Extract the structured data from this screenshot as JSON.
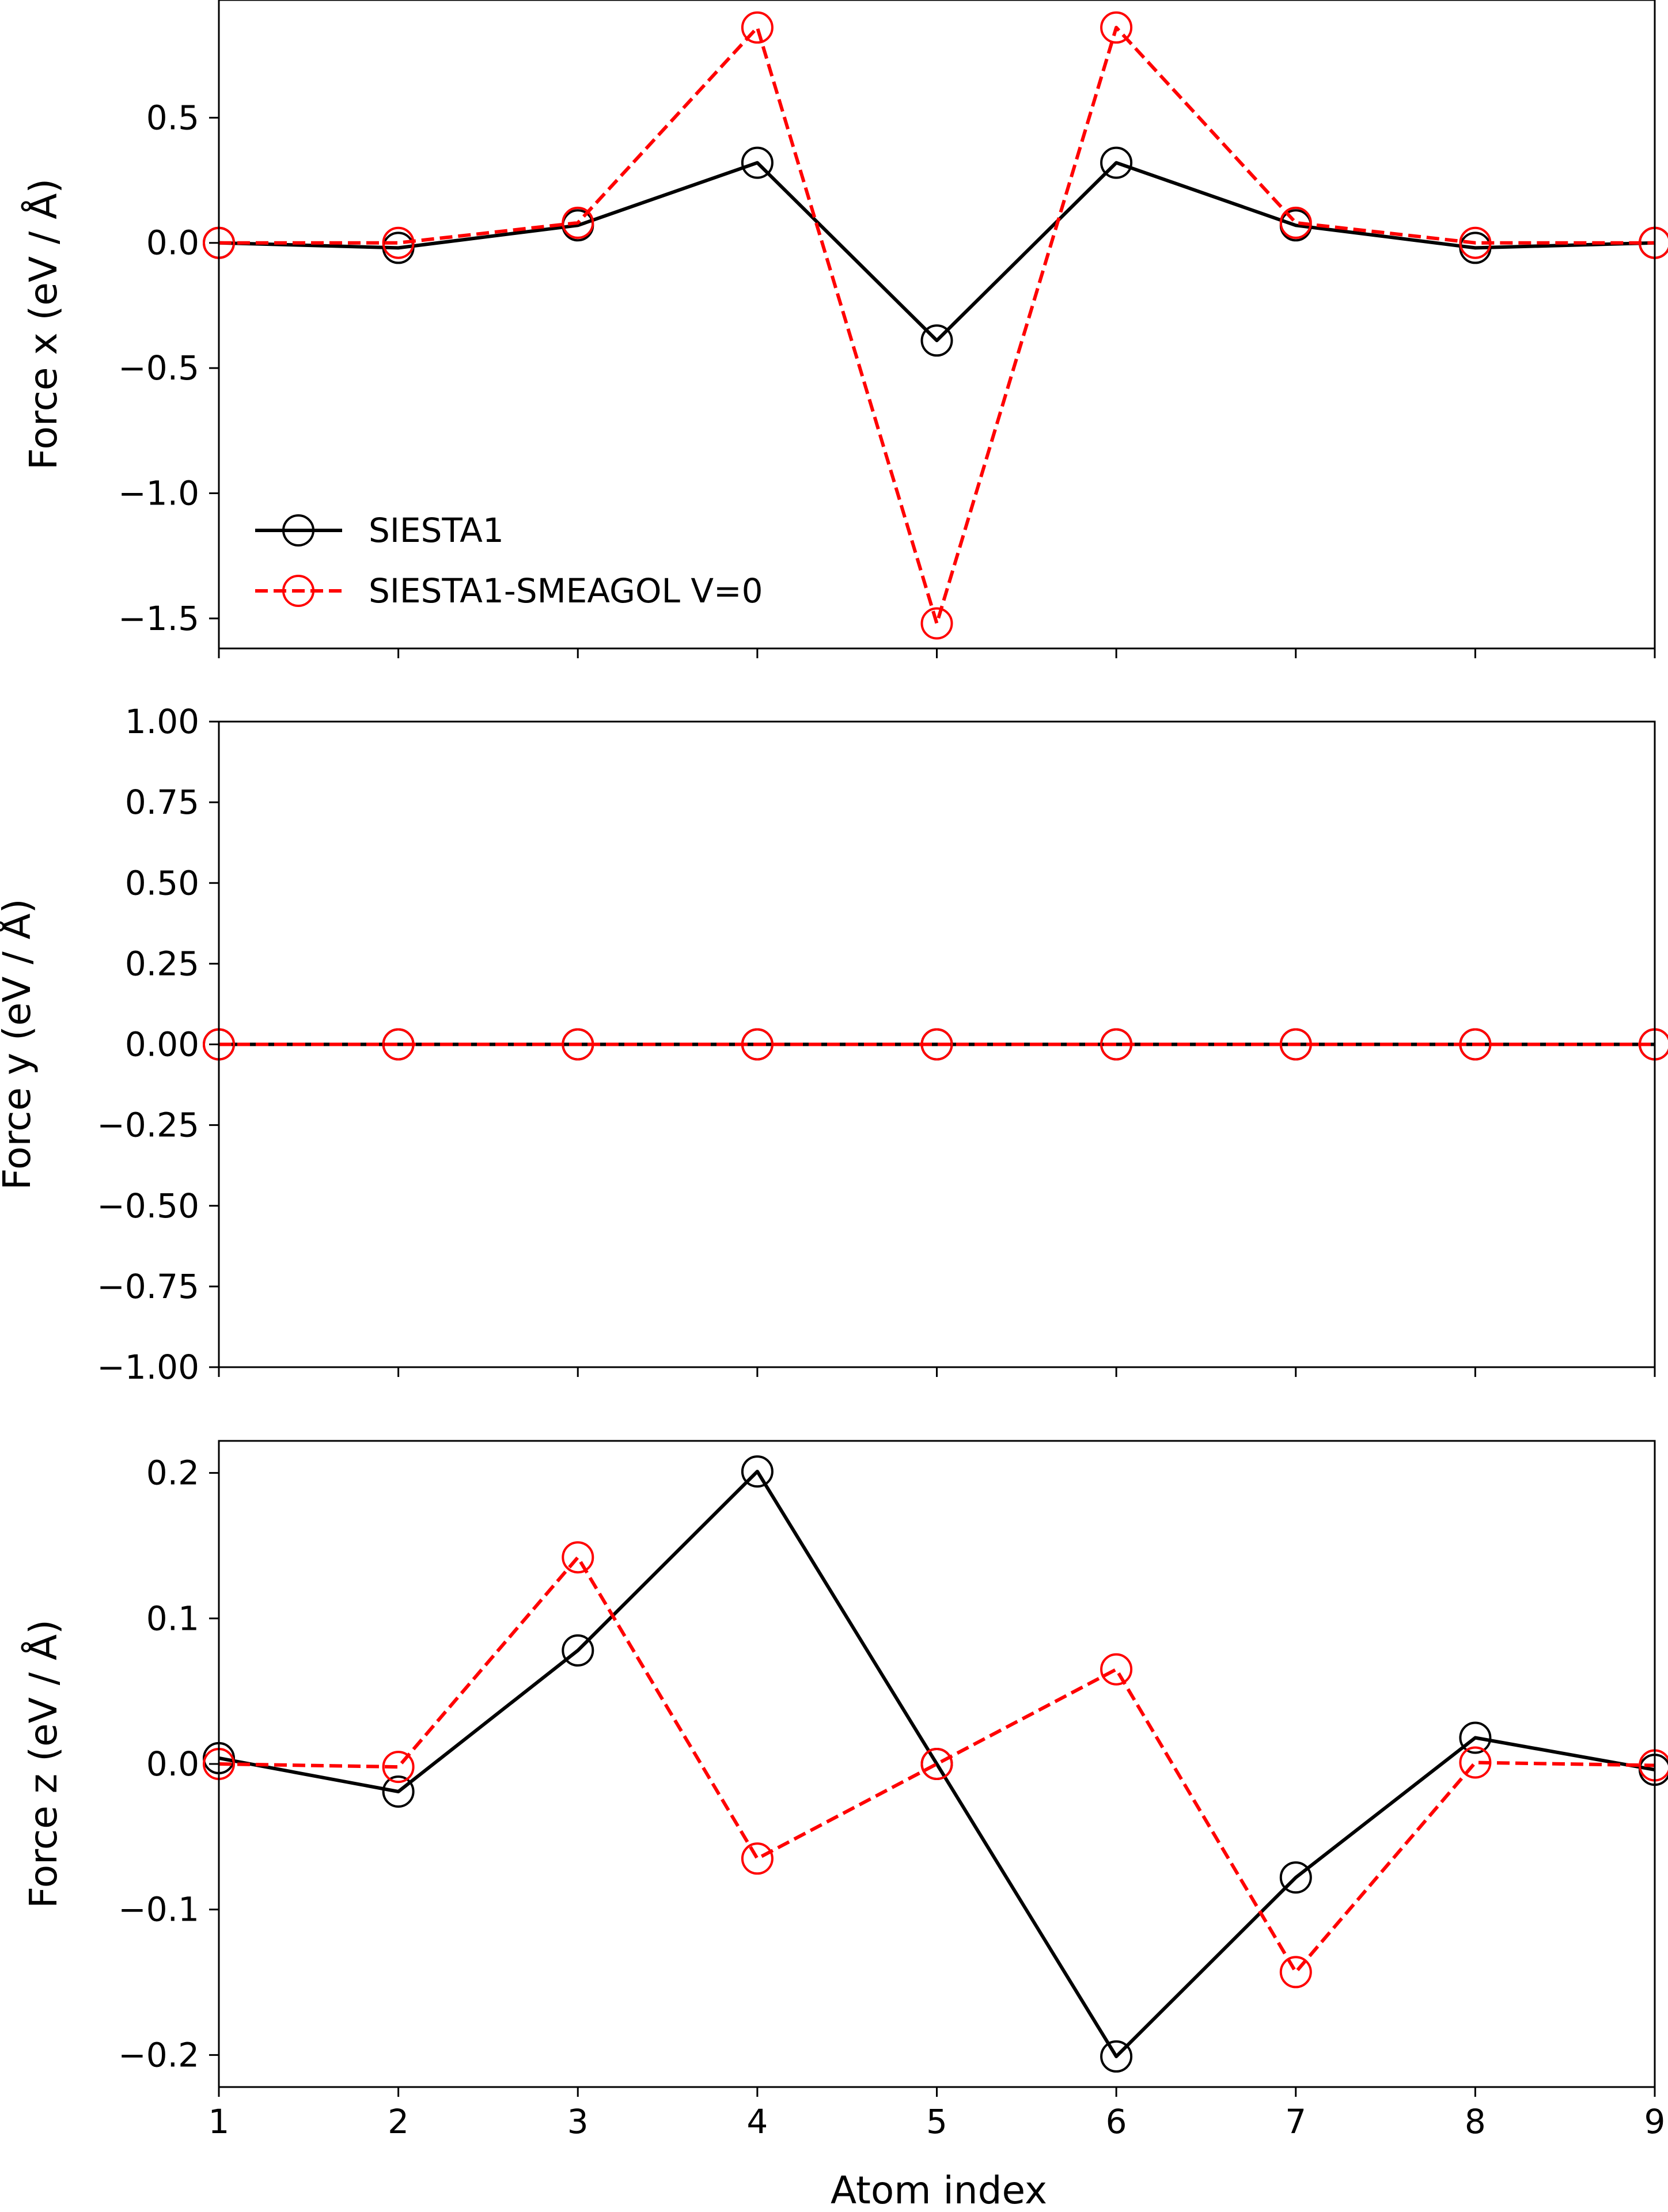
{
  "chart_data": [
    {
      "type": "line",
      "panel": "force-x",
      "ylabel": "Force x (eV / Å)",
      "xlabel": "",
      "xlim": [
        1,
        9
      ],
      "ylim": [
        -1.62,
        0.97
      ],
      "x": [
        1,
        2,
        3,
        4,
        5,
        6,
        7,
        8,
        9
      ],
      "yticks": [
        -1.5,
        -1.0,
        -0.5,
        0.0,
        0.5
      ],
      "ytick_labels": [
        "−1.5",
        "−1.0",
        "−0.5",
        "0.0",
        "0.5"
      ],
      "legend": "center-left",
      "grid": false,
      "series": [
        {
          "name": "SIESTA1",
          "color": "#000000",
          "linestyle": "solid",
          "marker": "open-circle",
          "values": [
            0.0,
            -0.02,
            0.07,
            0.32,
            -0.39,
            0.32,
            0.07,
            -0.02,
            0.0
          ]
        },
        {
          "name": "SIESTA1-SMEAGOL V=0",
          "color": "#ff0000",
          "linestyle": "dashed",
          "marker": "open-circle",
          "values": [
            0.0,
            0.0,
            0.08,
            0.86,
            -1.52,
            0.86,
            0.08,
            0.0,
            0.0
          ]
        }
      ]
    },
    {
      "type": "line",
      "panel": "force-y",
      "ylabel": "Force y (eV / Å)",
      "xlabel": "",
      "xlim": [
        1,
        9
      ],
      "ylim": [
        -1.0,
        1.0
      ],
      "x": [
        1,
        2,
        3,
        4,
        5,
        6,
        7,
        8,
        9
      ],
      "yticks": [
        -1.0,
        -0.75,
        -0.5,
        -0.25,
        0.0,
        0.25,
        0.5,
        0.75,
        1.0
      ],
      "ytick_labels": [
        "−1.00",
        "−0.75",
        "−0.50",
        "−0.25",
        "0.00",
        "0.25",
        "0.50",
        "0.75",
        "1.00"
      ],
      "grid": false,
      "series": [
        {
          "name": "SIESTA1",
          "color": "#000000",
          "linestyle": "solid",
          "marker": "open-circle",
          "values": [
            0,
            0,
            0,
            0,
            0,
            0,
            0,
            0,
            0
          ]
        },
        {
          "name": "SIESTA1-SMEAGOL V=0",
          "color": "#ff0000",
          "linestyle": "dashed",
          "marker": "open-circle",
          "values": [
            0,
            0,
            0,
            0,
            0,
            0,
            0,
            0,
            0
          ]
        }
      ]
    },
    {
      "type": "line",
      "panel": "force-z",
      "ylabel": "Force z (eV / Å)",
      "xlabel": "Atom index",
      "xlim": [
        1,
        9
      ],
      "ylim": [
        -0.222,
        0.222
      ],
      "x": [
        1,
        2,
        3,
        4,
        5,
        6,
        7,
        8,
        9
      ],
      "xticks": [
        1,
        2,
        3,
        4,
        5,
        6,
        7,
        8,
        9
      ],
      "xtick_labels": [
        "1",
        "2",
        "3",
        "4",
        "5",
        "6",
        "7",
        "8",
        "9"
      ],
      "yticks": [
        -0.2,
        -0.1,
        0.0,
        0.1,
        0.2
      ],
      "ytick_labels": [
        "−0.2",
        "−0.1",
        "0.0",
        "0.1",
        "0.2"
      ],
      "grid": false,
      "series": [
        {
          "name": "SIESTA1",
          "color": "#000000",
          "linestyle": "solid",
          "marker": "open-circle",
          "values": [
            0.004,
            -0.019,
            0.078,
            0.201,
            0.0,
            -0.201,
            -0.078,
            0.018,
            -0.004
          ]
        },
        {
          "name": "SIESTA1-SMEAGOL V=0",
          "color": "#ff0000",
          "linestyle": "dashed",
          "marker": "open-circle",
          "values": [
            0.0,
            -0.002,
            0.142,
            -0.065,
            0.0,
            0.065,
            -0.143,
            0.001,
            -0.001
          ]
        }
      ]
    }
  ]
}
